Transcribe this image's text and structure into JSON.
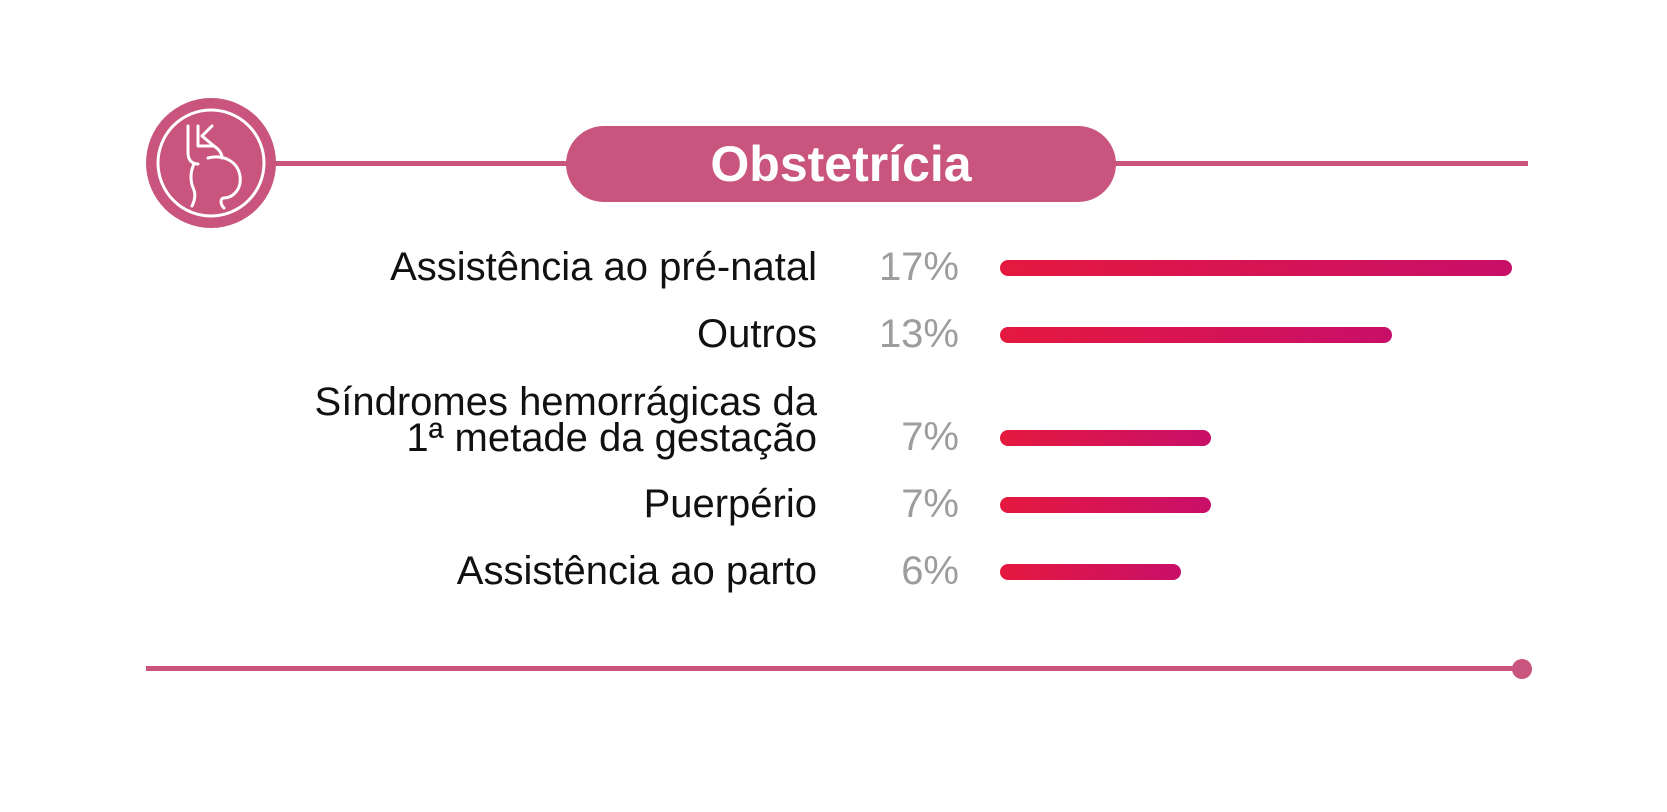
{
  "header": {
    "title": "Obstetrícia",
    "icon": "pregnant-woman-icon"
  },
  "colors": {
    "accent": "#c9547d",
    "bar_start": "#e5193f",
    "bar_end": "#c80f69",
    "label": "#111111",
    "percent": "#9d9d9d"
  },
  "chart_data": {
    "type": "bar",
    "orientation": "horizontal",
    "title": "Obstetrícia",
    "categories": [
      "Assistência ao pré-natal",
      "Outros",
      "Síndromes hemorrágicas da\n1ª metade da gestação",
      "Puerpério",
      "Assistência ao parto"
    ],
    "values": [
      17,
      13,
      7,
      7,
      6
    ],
    "value_labels": [
      "17%",
      "13%",
      "7%",
      "7%",
      "6%"
    ],
    "unit": "%",
    "xlim": [
      0,
      17
    ],
    "grid": false,
    "legend": "none"
  }
}
